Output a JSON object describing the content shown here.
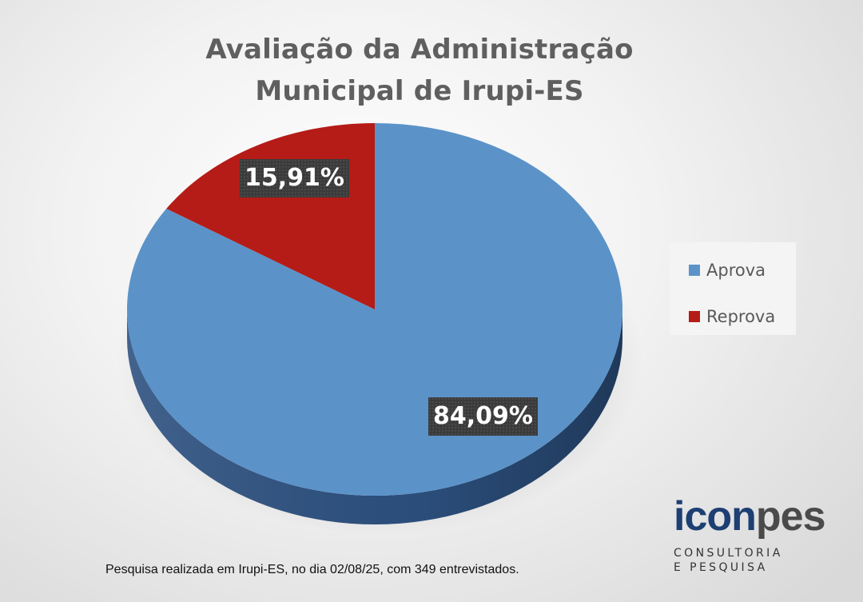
{
  "chart_data": {
    "type": "pie",
    "title_lines": [
      "Avaliação da Administração",
      "Municipal de Irupi-ES"
    ],
    "slices": [
      {
        "name": "Aprova",
        "value": 84.09,
        "label": "84,09%",
        "color": "#5b93c9",
        "side_color": "#2d5180"
      },
      {
        "name": "Reprova",
        "value": 15.91,
        "label": "15,91%",
        "color": "#b51c17",
        "side_color": "#6e100e"
      }
    ],
    "legend_position": "right"
  },
  "footer": "Pesquisa realizada em Irupi-ES, no dia 02/08/25, com 349 entrevistados.",
  "logo": {
    "part1": "icon",
    "part2": "pes",
    "line1": "CONSULTORIA",
    "line2": "E PESQUISA"
  }
}
